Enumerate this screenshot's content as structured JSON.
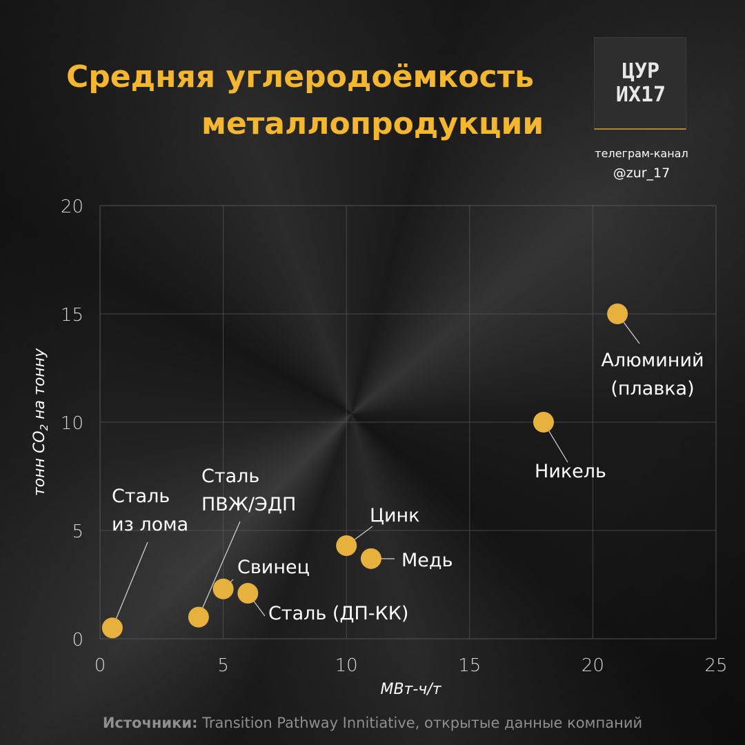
{
  "title": {
    "line1": "Средняя углеродоёмкость",
    "line2": "металлопродукции"
  },
  "brand": {
    "logo_text": [
      "ЦУР",
      "ИХ17"
    ],
    "channel_label": "телеграм-канал",
    "handle": "@zur_17"
  },
  "colors": {
    "accent": "#f5b72e",
    "point": "#e7b13d",
    "grid": "#5a5a5a",
    "text": "#ffffff",
    "muted": "#8f8f8f"
  },
  "chart_data": {
    "type": "scatter",
    "xlabel": "МВт-ч/т",
    "ylabel_prefix": "тонн CO",
    "ylabel_sub": "2",
    "ylabel_suffix": " на тонну",
    "xlim": [
      0,
      25
    ],
    "ylim": [
      0,
      20
    ],
    "xticks": [
      0,
      5,
      10,
      15,
      20,
      25
    ],
    "yticks": [
      0,
      5,
      10,
      15,
      20
    ],
    "grid": true,
    "points": [
      {
        "label": [
          "Сталь",
          "из лома"
        ],
        "x": 0.5,
        "y": 0.5
      },
      {
        "label": [
          "Сталь",
          "ПВЖ/ЭДП"
        ],
        "x": 4.0,
        "y": 1.0
      },
      {
        "label": [
          "Свинец"
        ],
        "x": 5.0,
        "y": 2.3
      },
      {
        "label": [
          "Сталь (ДП-КК)"
        ],
        "x": 6.0,
        "y": 2.1
      },
      {
        "label": [
          "Цинк"
        ],
        "x": 10.0,
        "y": 4.3
      },
      {
        "label": [
          "Медь"
        ],
        "x": 11.0,
        "y": 3.7
      },
      {
        "label": [
          "Никель"
        ],
        "x": 18.0,
        "y": 10.0
      },
      {
        "label": [
          "Алюминий",
          "(плавка)"
        ],
        "x": 21.0,
        "y": 15.0
      }
    ]
  },
  "source": {
    "prefix": "Источники:",
    "text": " Transition Pathway Innitiative, открытые данные компаний"
  }
}
